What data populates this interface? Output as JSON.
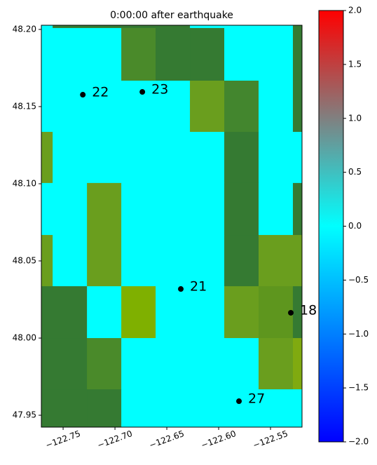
{
  "chart_data": {
    "type": "heatmap-map",
    "title": "0:00:00 after earthquake",
    "xlim": [
      -122.771,
      -122.5196
    ],
    "ylim": [
      47.9423,
      48.2027
    ],
    "xticks": [
      {
        "value": -122.75,
        "label": "−122.75"
      },
      {
        "value": -122.7,
        "label": "−122.70"
      },
      {
        "value": -122.65,
        "label": "−122.65"
      },
      {
        "value": -122.6,
        "label": "−122.60"
      },
      {
        "value": -122.55,
        "label": "−122.55"
      }
    ],
    "yticks": [
      47.95,
      {
        "value": 48.0,
        "label": "48.00"
      },
      48.05,
      {
        "value": 48.1,
        "label": "48.10"
      },
      48.15,
      {
        "value": 48.2,
        "label": "48.20"
      }
    ],
    "x_edges": [
      -122.771,
      -122.7601,
      -122.727,
      -122.6939,
      -122.6608,
      -122.6277,
      -122.5946,
      -122.5615,
      -122.5284,
      -122.5196
    ],
    "y_edges": [
      48.2027,
      48.2009,
      48.1668,
      48.1336,
      48.1005,
      48.0668,
      48.0336,
      48.0,
      47.9668,
      47.9423
    ],
    "cell_colors": [
      [
        "#00ffff",
        "#357a32",
        "#357a32",
        "#357a32",
        "#357a32",
        "#00ffff",
        "#00ffff",
        "#00ffff",
        "#357a32"
      ],
      [
        "#00ffff",
        "#00ffff",
        "#00ffff",
        "#4a8a2a",
        "#357a32",
        "#357a32",
        "#00ffff",
        "#00ffff",
        "#357a32"
      ],
      [
        "#00ffff",
        "#00ffff",
        "#00ffff",
        "#00ffff",
        "#00ffff",
        "#6a9e1e",
        "#43862e",
        "#00ffff",
        "#357a32"
      ],
      [
        "#6a9e1e",
        "#00ffff",
        "#00ffff",
        "#00ffff",
        "#00ffff",
        "#00ffff",
        "#357a32",
        "#00ffff",
        "#00ffff"
      ],
      [
        "#00ffff",
        "#00ffff",
        "#6a9e1e",
        "#00ffff",
        "#00ffff",
        "#00ffff",
        "#357a32",
        "#00ffff",
        "#357a32"
      ],
      [
        "#6a9e1e",
        "#00ffff",
        "#6a9e1e",
        "#00ffff",
        "#00ffff",
        "#00ffff",
        "#357a32",
        "#6a9e1e",
        "#6a9e1e"
      ],
      [
        "#357a32",
        "#357a32",
        "#00ffff",
        "#7fb000",
        "#00ffff",
        "#00ffff",
        "#6a9e1e",
        "#5e961e",
        "#357a32"
      ],
      [
        "#357a32",
        "#357a32",
        "#4a8a2a",
        "#00ffff",
        "#00ffff",
        "#00ffff",
        "#00ffff",
        "#6a9e1e",
        "#80aa10"
      ],
      [
        "#357a32",
        "#357a32",
        "#357a32",
        "#00ffff",
        "#00ffff",
        "#00ffff",
        "#00ffff",
        "#00ffff",
        "#00ffff"
      ]
    ],
    "gauges": [
      {
        "label": "22",
        "lon": -122.731,
        "lat": 48.1577
      },
      {
        "label": "23",
        "lon": -122.6736,
        "lat": 48.1595
      },
      {
        "label": "21",
        "lon": -122.6365,
        "lat": 48.0318
      },
      {
        "label": "18",
        "lon": -122.5304,
        "lat": 48.0164
      },
      {
        "label": "27",
        "lon": -122.5804,
        "lat": 47.9591
      }
    ],
    "gauge_color": "#000000",
    "clim": [
      -2.0,
      2.0
    ],
    "cticks": [
      {
        "value": -2.0,
        "label": "−2.0"
      },
      {
        "value": -1.5,
        "label": "−1.5"
      },
      {
        "value": -1.0,
        "label": "−1.0"
      },
      {
        "value": -0.5,
        "label": "−0.5"
      },
      {
        "value": 0.0,
        "label": "0.0"
      },
      0.5,
      {
        "value": 1.0,
        "label": "1.0"
      },
      1.5,
      {
        "value": 2.0,
        "label": "2.0"
      }
    ],
    "colormap": [
      {
        "value": -2.0,
        "color": "#0000ff"
      },
      {
        "value": 0.0,
        "color": "#00ffff"
      },
      {
        "value": 1.0,
        "color": "#808080"
      },
      {
        "value": 2.0,
        "color": "#ff0000"
      }
    ]
  }
}
